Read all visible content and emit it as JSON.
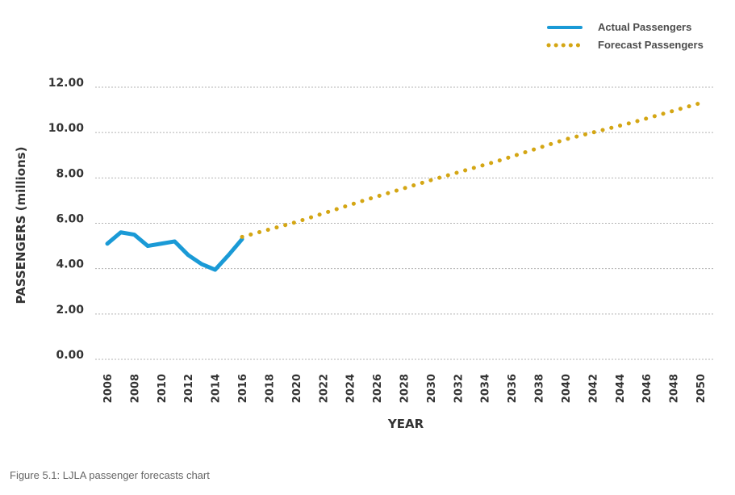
{
  "chart_data": {
    "type": "line",
    "xlabel": "YEAR",
    "ylabel": "PASSENGERS (millions)",
    "xlim": [
      2006,
      2050
    ],
    "ylim": [
      0,
      12
    ],
    "grid": true,
    "legend_position": "top-right",
    "x_ticks": [
      "2006",
      "2008",
      "2010",
      "2012",
      "2014",
      "2016",
      "2018",
      "2020",
      "2022",
      "2024",
      "2026",
      "2028",
      "2030",
      "2032",
      "2034",
      "2036",
      "2038",
      "2040",
      "2042",
      "2044",
      "2046",
      "2048",
      "2050"
    ],
    "y_ticks": [
      "0.00",
      "2.00",
      "4.00",
      "6.00",
      "8.00",
      "10.00",
      "12.00"
    ],
    "series": [
      {
        "name": "Actual Passengers",
        "style": "solid",
        "color": "#1a9ad6",
        "x": [
          2006,
          2007,
          2008,
          2009,
          2010,
          2011,
          2012,
          2013,
          2014,
          2015,
          2016
        ],
        "y": [
          5.1,
          5.6,
          5.5,
          5.0,
          5.1,
          5.2,
          4.6,
          4.2,
          3.95,
          4.6,
          5.3
        ]
      },
      {
        "name": "Forecast Passengers",
        "style": "dotted",
        "color": "#d4a614",
        "x": [
          2016,
          2020,
          2025,
          2030,
          2035,
          2040,
          2045,
          2050
        ],
        "y": [
          5.4,
          6.05,
          7.0,
          7.9,
          8.75,
          9.7,
          10.45,
          11.3
        ]
      }
    ]
  },
  "caption": "Figure 5.1: LJLA passenger forecasts chart"
}
